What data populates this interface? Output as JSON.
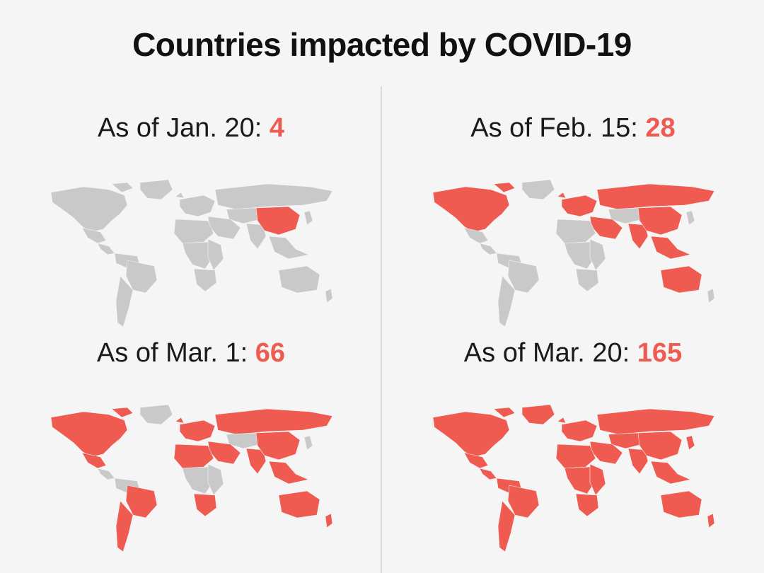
{
  "title": "Countries impacted by COVID-19",
  "colors": {
    "impacted": "#ef5b50",
    "not_impacted": "#c9c9c9",
    "accent": "#ef5b50"
  },
  "panels": [
    {
      "label": "As of Jan. 20: ",
      "count": "4",
      "impacted": [
        "china"
      ]
    },
    {
      "label": "As of Feb. 15: ",
      "count": "28",
      "impacted": [
        "north-america",
        "western-europe",
        "russia",
        "middle-east",
        "india",
        "china",
        "southeast-asia",
        "australia"
      ]
    },
    {
      "label": "As of Mar. 1: ",
      "count": "66",
      "impacted": [
        "north-america",
        "mexico",
        "brazil",
        "south-america-south",
        "western-europe",
        "russia",
        "middle-east",
        "north-africa",
        "india",
        "china",
        "southeast-asia",
        "australia",
        "new-zealand",
        "south-africa"
      ]
    },
    {
      "label": "As of Mar. 20: ",
      "count": "165",
      "impacted": [
        "north-america",
        "greenland",
        "mexico",
        "central-america",
        "brazil",
        "south-america-north",
        "south-america-south",
        "western-europe",
        "russia",
        "middle-east",
        "north-africa",
        "central-africa",
        "east-africa",
        "south-africa",
        "india",
        "china",
        "central-asia",
        "southeast-asia",
        "australia",
        "new-zealand",
        "japan"
      ]
    }
  ]
}
